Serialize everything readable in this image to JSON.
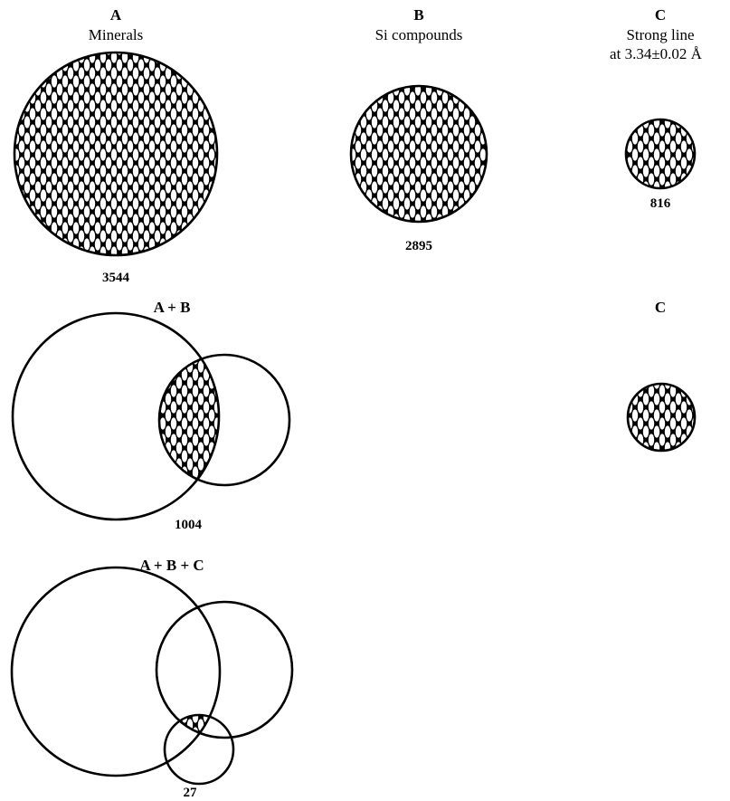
{
  "row1": {
    "a": {
      "letter": "A",
      "caption": "Minerals",
      "count": "3544"
    },
    "b": {
      "letter": "B",
      "caption": "Si compounds",
      "count": "2895"
    },
    "c": {
      "letter": "C",
      "caption_line1": "Strong line",
      "caption_line2": "at 3.34±0.02 Å",
      "count": "816"
    }
  },
  "row2": {
    "label": "A + B",
    "count": "1004",
    "c_label": "C"
  },
  "row3": {
    "label": "A + B + C",
    "count": "27"
  },
  "colors": {
    "ink": "#000000",
    "background": "#ffffff"
  }
}
